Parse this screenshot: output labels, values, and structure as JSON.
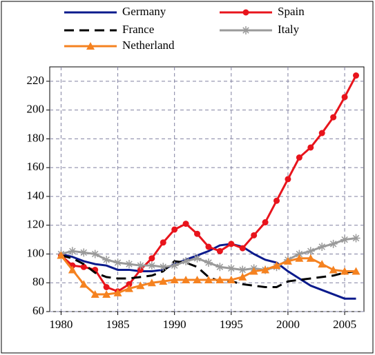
{
  "chart_data": {
    "type": "line",
    "x": [
      1980,
      1981,
      1982,
      1983,
      1984,
      1985,
      1986,
      1987,
      1988,
      1989,
      1990,
      1991,
      1992,
      1993,
      1994,
      1995,
      1996,
      1997,
      1998,
      1999,
      2000,
      2001,
      2002,
      2003,
      2004,
      2005,
      2006
    ],
    "series": [
      {
        "name": "Germany",
        "color": "#0a1a8c",
        "dash": false,
        "marker": "none",
        "values": [
          100,
          98,
          95,
          93,
          92,
          89,
          89,
          88,
          88,
          89,
          93,
          96,
          99,
          102,
          106,
          107,
          105,
          100,
          96,
          94,
          88,
          83,
          78,
          75,
          72,
          69,
          69
        ]
      },
      {
        "name": "Spain",
        "color": "#e8141c",
        "dash": false,
        "marker": "circle",
        "values": [
          99,
          92,
          91,
          89,
          77,
          74,
          79,
          89,
          97,
          108,
          117,
          121,
          114,
          105,
          102,
          107,
          104,
          113,
          122,
          137,
          152,
          167,
          174,
          184,
          195,
          209,
          224
        ]
      },
      {
        "name": "France",
        "color": "#000000",
        "dash": true,
        "marker": "none",
        "values": [
          99,
          97,
          93,
          87,
          84,
          83,
          83,
          84,
          85,
          88,
          95,
          94,
          91,
          84,
          81,
          81,
          79,
          78,
          77,
          77,
          81,
          82,
          83,
          84,
          85,
          87,
          88
        ]
      },
      {
        "name": "Italy",
        "color": "#9a9a9a",
        "dash": false,
        "marker": "asterisk",
        "values": [
          100,
          102,
          101,
          100,
          96,
          94,
          93,
          92,
          92,
          91,
          92,
          95,
          97,
          94,
          91,
          90,
          89,
          90,
          89,
          91,
          96,
          100,
          102,
          105,
          107,
          110,
          111
        ]
      },
      {
        "name": "Netherland",
        "color": "#f58220",
        "dash": false,
        "marker": "triangle",
        "values": [
          99,
          89,
          79,
          72,
          72,
          73,
          76,
          78,
          80,
          81,
          82,
          82,
          82,
          82,
          82,
          82,
          84,
          88,
          89,
          92,
          95,
          97,
          97,
          93,
          89,
          88,
          88
        ]
      }
    ],
    "xlim": [
      1979,
      2006.7
    ],
    "xticks": [
      1980,
      1985,
      1990,
      1995,
      2000,
      2005
    ],
    "ylim": [
      60,
      230
    ],
    "yticks": [
      60,
      80,
      100,
      120,
      140,
      160,
      180,
      200,
      220
    ],
    "grid": true,
    "legend": "top"
  }
}
